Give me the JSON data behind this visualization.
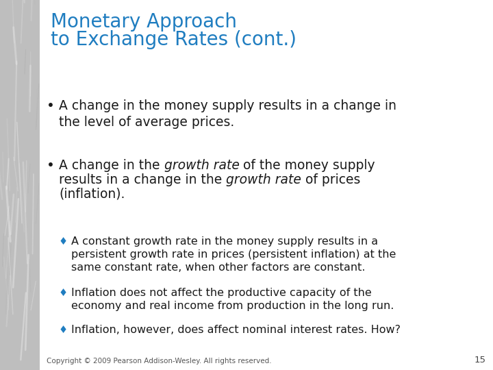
{
  "title_line1": "Monetary Approach",
  "title_line2": "to Exchange Rates (cont.)",
  "title_color": "#1F7DC0",
  "title_fontsize": 20,
  "bg_color": "#FFFFFF",
  "left_panel_color": "#BEBEBE",
  "text_color": "#1A1A1A",
  "bullet_fontsize": 13.5,
  "sub_bullet_fontsize": 11.5,
  "diamond_color": "#1F7DC0",
  "footer": "Copyright © 2009 Pearson Addison-Wesley. All rights reserved.",
  "page_number": "15",
  "footer_fontsize": 7.5
}
